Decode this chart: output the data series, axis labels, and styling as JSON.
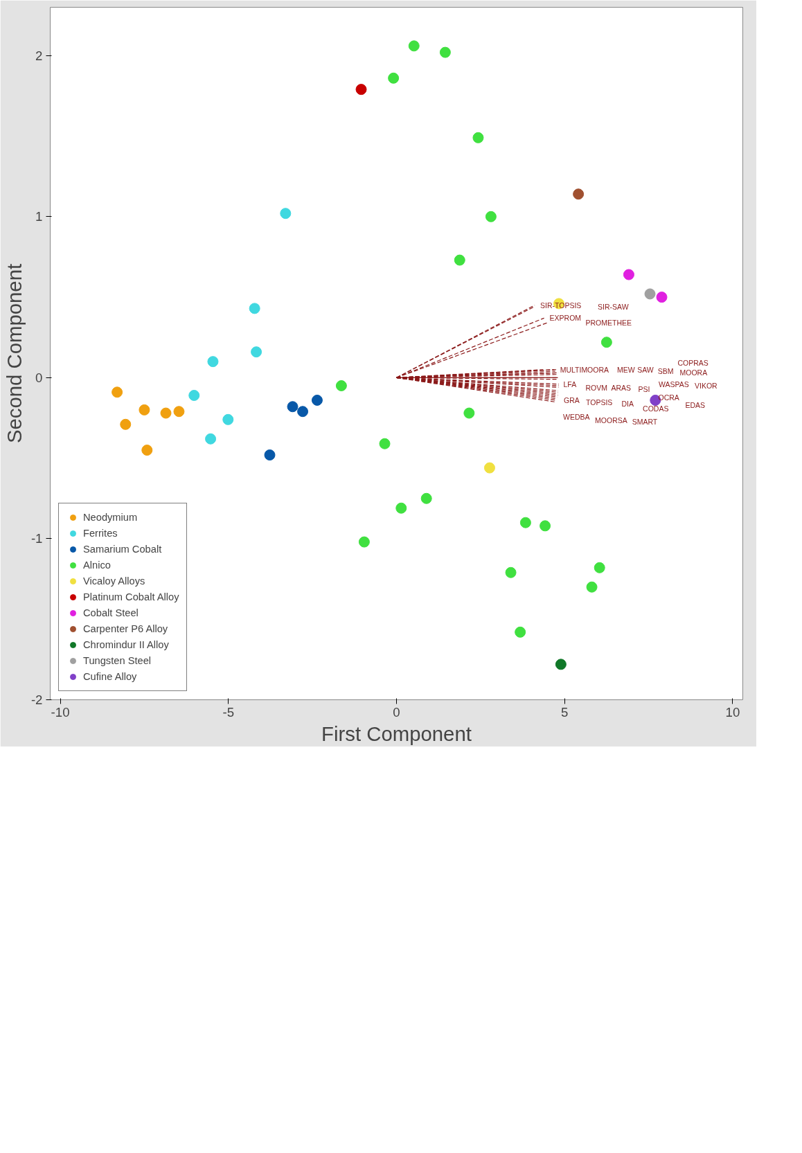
{
  "chart_data": {
    "type": "scatter",
    "xlabel": "First Component",
    "ylabel": "Second Component",
    "xlim": [
      -10.3,
      10.3
    ],
    "ylim": [
      -2,
      2.3
    ],
    "xticks": [
      -10,
      -5,
      0,
      5,
      10
    ],
    "yticks": [
      -2,
      -1,
      0,
      1,
      2
    ],
    "grid": false,
    "legend": "bottom left",
    "marker": "circle",
    "series": [
      {
        "name": "Neodymium",
        "color": "#f0a010",
        "x": [
          -8.31,
          -8.06,
          -7.5,
          -7.42,
          -6.86,
          -6.47
        ],
        "values": [
          -0.09,
          -0.29,
          -0.2,
          -0.45,
          -0.22,
          -0.21
        ]
      },
      {
        "name": "Ferrites",
        "color": "#40d8e0",
        "x": [
          -3.3,
          -4.22,
          -4.17,
          -5.01,
          -5.46,
          -5.53,
          -6.02
        ],
        "values": [
          1.02,
          0.43,
          0.16,
          -0.26,
          0.1,
          -0.38,
          -0.11
        ]
      },
      {
        "name": "Samarium Cobalt",
        "color": "#0858a8",
        "x": [
          -2.36,
          -2.79,
          -3.09,
          -3.77
        ],
        "values": [
          -0.14,
          -0.21,
          -0.18,
          -0.48
        ]
      },
      {
        "name": "Alnico",
        "color": "#40e040",
        "x": [
          -0.09,
          0.52,
          1.45,
          2.43,
          2.81,
          1.88,
          -1.64,
          -0.35,
          0.14,
          0.89,
          -0.96,
          2.16,
          6.25,
          6.04,
          5.81,
          4.42,
          3.84,
          3.4,
          3.68
        ],
        "values": [
          1.86,
          2.06,
          2.02,
          1.49,
          1.0,
          0.73,
          -0.05,
          -0.41,
          -0.81,
          -0.75,
          -1.02,
          -0.22,
          0.22,
          -1.18,
          -1.3,
          -0.92,
          -0.9,
          -1.21,
          -1.58
        ]
      },
      {
        "name": "Vicaloy Alloys",
        "color": "#f0e040",
        "x": [
          4.83,
          2.77
        ],
        "values": [
          0.46,
          -0.56
        ]
      },
      {
        "name": "Platinum Cobalt Alloy",
        "color": "#c80000",
        "x": [
          -1.05
        ],
        "values": [
          1.79
        ]
      },
      {
        "name": "Cobalt Steel",
        "color": "#e020e0",
        "x": [
          6.91,
          7.89
        ],
        "values": [
          0.64,
          0.5
        ]
      },
      {
        "name": "Carpenter P6 Alloy",
        "color": "#a05030",
        "x": [
          5.41
        ],
        "values": [
          1.14
        ]
      },
      {
        "name": "Chromindur II Alloy",
        "color": "#107828",
        "x": [
          4.89
        ],
        "values": [
          -1.78
        ]
      },
      {
        "name": "Tungsten Steel",
        "color": "#a0a0a0",
        "x": [
          7.54
        ],
        "values": [
          0.52
        ]
      },
      {
        "name": "Cufine Alloy",
        "color": "#8040c8",
        "x": [
          7.7
        ],
        "values": [
          -0.14
        ]
      },
      {
        "type": "line",
        "name": "SIR-TOPSIS",
        "color": "#8b1a1a",
        "line_style": "dashed",
        "marker": "none",
        "x": [
          0,
          4.11
        ],
        "values": [
          0,
          0.45
        ]
      },
      {
        "type": "line",
        "name": "SIR-SAW",
        "color": "#8b1a1a",
        "line_style": "dashed",
        "marker": "none",
        "x": [
          0,
          4.09
        ],
        "values": [
          0,
          0.44
        ]
      },
      {
        "type": "line",
        "name": "EXPROM",
        "color": "#8b1a1a",
        "line_style": "dashed",
        "marker": "none",
        "x": [
          0,
          4.39
        ],
        "values": [
          0,
          0.37
        ]
      },
      {
        "type": "line",
        "name": "PROMETHEE",
        "color": "#8b1a1a",
        "line_style": "dashed",
        "marker": "none",
        "x": [
          0,
          4.47
        ],
        "values": [
          0,
          0.34
        ]
      },
      {
        "type": "line",
        "name": "MULTIMOORA",
        "color": "#8b1a1a",
        "line_style": "dashed",
        "marker": "none",
        "x": [
          0,
          4.7
        ],
        "values": [
          0,
          0.05
        ]
      },
      {
        "type": "line",
        "name": "MEW",
        "color": "#8b1a1a",
        "line_style": "dashed",
        "marker": "none",
        "x": [
          0,
          4.75
        ],
        "values": [
          0,
          0.05
        ]
      },
      {
        "type": "line",
        "name": "SAW",
        "color": "#8b1a1a",
        "line_style": "dashed",
        "marker": "none",
        "x": [
          0,
          4.36
        ],
        "values": [
          0,
          0.05
        ]
      },
      {
        "type": "line",
        "name": "SBM",
        "color": "#8b1a1a",
        "line_style": "dashed",
        "marker": "none",
        "x": [
          0,
          4.72
        ],
        "values": [
          0,
          0.04
        ]
      },
      {
        "type": "line",
        "name": "MOORA",
        "color": "#8b1a1a",
        "line_style": "dashed",
        "marker": "none",
        "x": [
          0,
          4.8
        ],
        "values": [
          0,
          0.03
        ]
      },
      {
        "type": "line",
        "name": "COPRAS",
        "color": "#8b1a1a",
        "line_style": "dashed",
        "marker": "none",
        "x": [
          0,
          4.82
        ],
        "values": [
          0,
          0.03
        ]
      },
      {
        "type": "line",
        "name": "LFA",
        "color": "#8b1a1a",
        "line_style": "dashed",
        "marker": "none",
        "x": [
          0,
          4.8
        ],
        "values": [
          0,
          0.02
        ]
      },
      {
        "type": "line",
        "name": "ROVM",
        "color": "#8b1a1a",
        "line_style": "solid",
        "marker": "none",
        "x": [
          0,
          4.8
        ],
        "values": [
          0,
          0.0
        ]
      },
      {
        "type": "line",
        "name": "ARAS",
        "color": "#8b1a1a",
        "line_style": "dashed",
        "marker": "none",
        "x": [
          0,
          4.82
        ],
        "values": [
          0,
          0.0
        ]
      },
      {
        "type": "line",
        "name": "PSI",
        "color": "#8b1a1a",
        "line_style": "dashed",
        "marker": "none",
        "x": [
          0,
          4.8
        ],
        "values": [
          0,
          -0.01
        ]
      },
      {
        "type": "line",
        "name": "WASPAS",
        "color": "#8b1a1a",
        "line_style": "dashed",
        "marker": "none",
        "x": [
          0,
          4.83
        ],
        "values": [
          0,
          -0.04
        ]
      },
      {
        "type": "line",
        "name": "VIKOR",
        "color": "#8b1a1a",
        "line_style": "dashed",
        "marker": "none",
        "x": [
          0,
          4.83
        ],
        "values": [
          0,
          -0.05
        ]
      },
      {
        "type": "line",
        "name": "OCRA",
        "color": "#8b1a1a",
        "line_style": "dashed",
        "marker": "none",
        "x": [
          0,
          4.82
        ],
        "values": [
          0,
          -0.06
        ]
      },
      {
        "type": "line",
        "name": "GRA",
        "color": "#8b1a1a",
        "line_style": "dashed",
        "marker": "none",
        "x": [
          0,
          4.81
        ],
        "values": [
          0,
          -0.08
        ]
      },
      {
        "type": "line",
        "name": "TOPSIS",
        "color": "#8b1a1a",
        "line_style": "dashed",
        "marker": "none",
        "x": [
          0,
          4.81
        ],
        "values": [
          0,
          -0.09
        ]
      },
      {
        "type": "line",
        "name": "DIA",
        "color": "#8b1a1a",
        "line_style": "dashed",
        "marker": "none",
        "x": [
          0,
          4.8
        ],
        "values": [
          0,
          -0.1
        ]
      },
      {
        "type": "line",
        "name": "EDAS",
        "color": "#8b1a1a",
        "line_style": "dashed",
        "marker": "none",
        "x": [
          0,
          4.8
        ],
        "values": [
          0,
          -0.11
        ]
      },
      {
        "type": "line",
        "name": "WEDBA",
        "color": "#8b1a1a",
        "line_style": "dashed",
        "marker": "none",
        "x": [
          0,
          4.79
        ],
        "values": [
          0,
          -0.12
        ]
      },
      {
        "type": "line",
        "name": "CODAS",
        "color": "#8b1a1a",
        "line_style": "dashed",
        "marker": "none",
        "x": [
          0,
          4.77
        ],
        "values": [
          0,
          -0.13
        ]
      },
      {
        "type": "line",
        "name": "MOORSA",
        "color": "#8b1a1a",
        "line_style": "dashed",
        "marker": "none",
        "x": [
          0,
          4.75
        ],
        "values": [
          0,
          -0.14
        ]
      },
      {
        "type": "line",
        "name": "SMART",
        "color": "#8b1a1a",
        "line_style": "dashed",
        "marker": "none",
        "x": [
          0,
          4.7
        ],
        "values": [
          0,
          -0.15
        ]
      }
    ]
  }
}
